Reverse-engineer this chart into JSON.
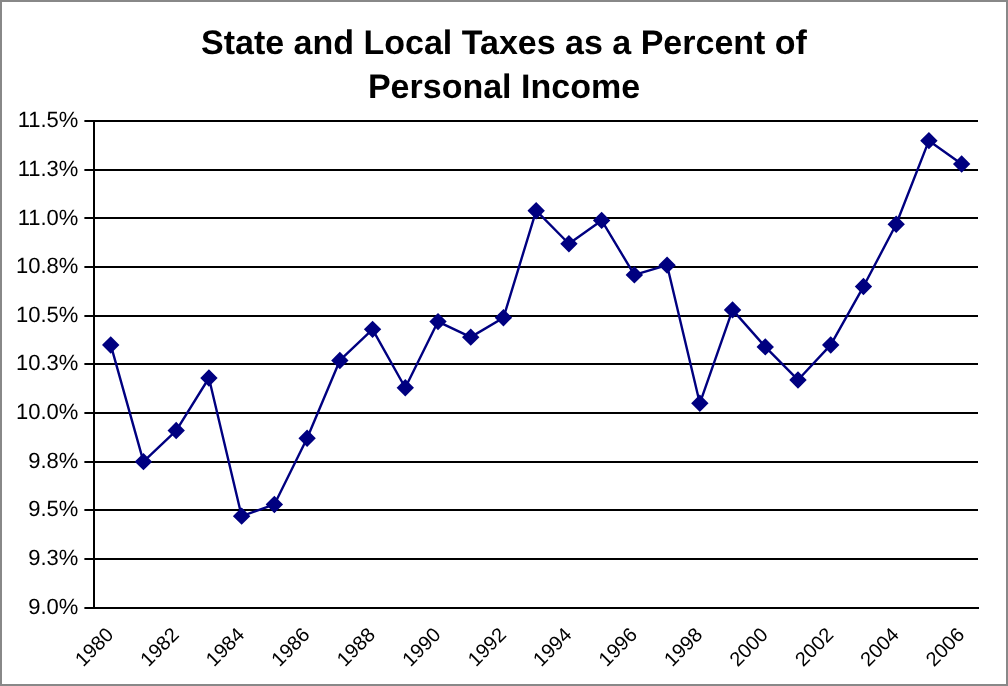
{
  "chart_data": {
    "type": "line",
    "title": "State and Local Taxes as a Percent of Personal Income",
    "categories": [
      "1980",
      null,
      "1982",
      null,
      "1984",
      null,
      "1986",
      null,
      "1988",
      null,
      "1990",
      null,
      "1992",
      null,
      "1994",
      null,
      "1996",
      null,
      "1998",
      null,
      "2000",
      null,
      "2002",
      null,
      "2004",
      null,
      "2006"
    ],
    "series": [
      {
        "color": "#000080",
        "values": [
          10.35,
          9.75,
          9.91,
          10.18,
          9.47,
          9.53,
          9.87,
          10.27,
          10.43,
          10.13,
          10.47,
          10.39,
          10.49,
          11.04,
          10.87,
          10.99,
          10.71,
          10.76,
          10.05,
          10.53,
          10.34,
          10.17,
          10.35,
          10.65,
          10.97,
          11.4,
          11.28
        ]
      }
    ],
    "ylim": [
      9,
      11.5
    ],
    "yticks": [
      {
        "value": 9,
        "label": "9.0%"
      },
      {
        "value": 9.25,
        "label": "9.3%"
      },
      {
        "value": 9.5,
        "label": "9.5%"
      },
      {
        "value": 9.75,
        "label": "9.8%"
      },
      {
        "value": 10,
        "label": "10.0%"
      },
      {
        "value": 10.25,
        "label": "10.3%"
      },
      {
        "value": 10.5,
        "label": "10.5%"
      },
      {
        "value": 10.75,
        "label": "10.8%"
      },
      {
        "value": 11,
        "label": "11.0%"
      },
      {
        "value": 11.25,
        "label": "11.3%"
      },
      {
        "value": 11.5,
        "label": "11.5%"
      }
    ],
    "grid": "y",
    "legend": false,
    "marker": "diamond",
    "line_style": "solid"
  }
}
